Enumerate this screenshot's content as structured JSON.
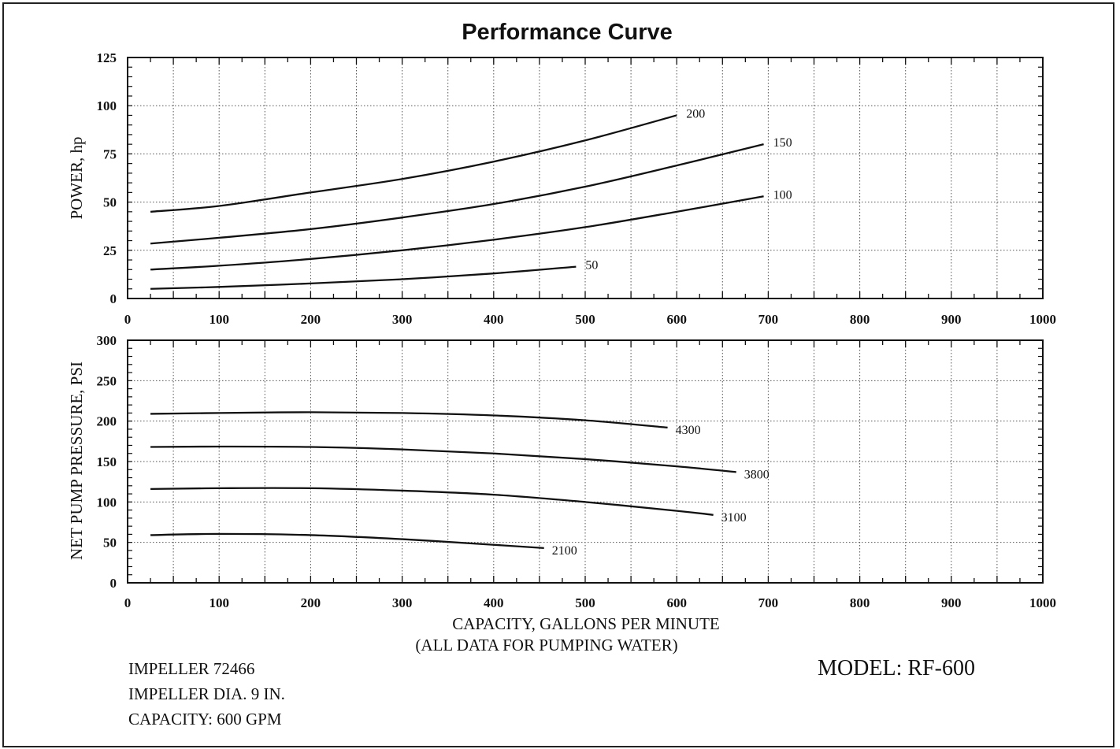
{
  "chart_data": [
    {
      "type": "line",
      "title": "Performance Curve",
      "xlabel": "",
      "ylabel": "POWER, hp",
      "xlim": [
        0,
        1000
      ],
      "ylim": [
        0,
        125
      ],
      "xticks": [
        0,
        100,
        200,
        300,
        400,
        500,
        600,
        700,
        800,
        900,
        1000
      ],
      "yticks": [
        0,
        25,
        50,
        75,
        100,
        125
      ],
      "grid": true,
      "series": [
        {
          "name": "200",
          "x": [
            25,
            100,
            200,
            300,
            400,
            500,
            600
          ],
          "y": [
            45,
            48,
            55,
            62,
            71,
            82,
            95
          ]
        },
        {
          "name": "150",
          "x": [
            25,
            100,
            200,
            300,
            400,
            500,
            600,
            695
          ],
          "y": [
            28.5,
            31.5,
            36,
            42,
            49,
            58,
            69,
            80
          ]
        },
        {
          "name": "100",
          "x": [
            25,
            100,
            200,
            300,
            400,
            500,
            600,
            695
          ],
          "y": [
            15,
            17,
            20.5,
            25,
            30.5,
            37,
            45,
            53
          ]
        },
        {
          "name": "50",
          "x": [
            25,
            100,
            200,
            300,
            400,
            490
          ],
          "y": [
            5,
            6,
            7.8,
            10,
            13,
            16.5
          ]
        }
      ]
    },
    {
      "type": "line",
      "title": "",
      "xlabel": "CAPACITY, GALLONS PER MINUTE",
      "xlabel2": "(ALL DATA FOR PUMPING WATER)",
      "ylabel": "NET PUMP PRESSURE, PSI",
      "xlim": [
        0,
        1000
      ],
      "ylim": [
        0,
        300
      ],
      "xticks": [
        0,
        100,
        200,
        300,
        400,
        500,
        600,
        700,
        800,
        900,
        1000
      ],
      "yticks": [
        0,
        50,
        100,
        150,
        200,
        250,
        300
      ],
      "grid": true,
      "series": [
        {
          "name": "4300",
          "x": [
            25,
            100,
            200,
            300,
            400,
            500,
            590
          ],
          "y": [
            209,
            210,
            211,
            210,
            207,
            201,
            192
          ]
        },
        {
          "name": "3800",
          "x": [
            25,
            100,
            200,
            300,
            400,
            500,
            600,
            665
          ],
          "y": [
            168,
            168.5,
            168,
            165,
            160,
            153,
            144,
            137
          ]
        },
        {
          "name": "3100",
          "x": [
            25,
            100,
            200,
            300,
            400,
            500,
            600,
            640
          ],
          "y": [
            116,
            117,
            117,
            114,
            109,
            100,
            89,
            84
          ]
        },
        {
          "name": "2100",
          "x": [
            25,
            100,
            200,
            300,
            400,
            455
          ],
          "y": [
            59,
            60.5,
            59,
            54,
            47,
            43
          ]
        }
      ]
    }
  ],
  "notes": {
    "impeller": "IMPELLER  72466",
    "impeller_dia": "IMPELLER DIA.  9 IN.",
    "capacity": "CAPACITY: 600 GPM",
    "model": "MODEL: RF-600"
  }
}
